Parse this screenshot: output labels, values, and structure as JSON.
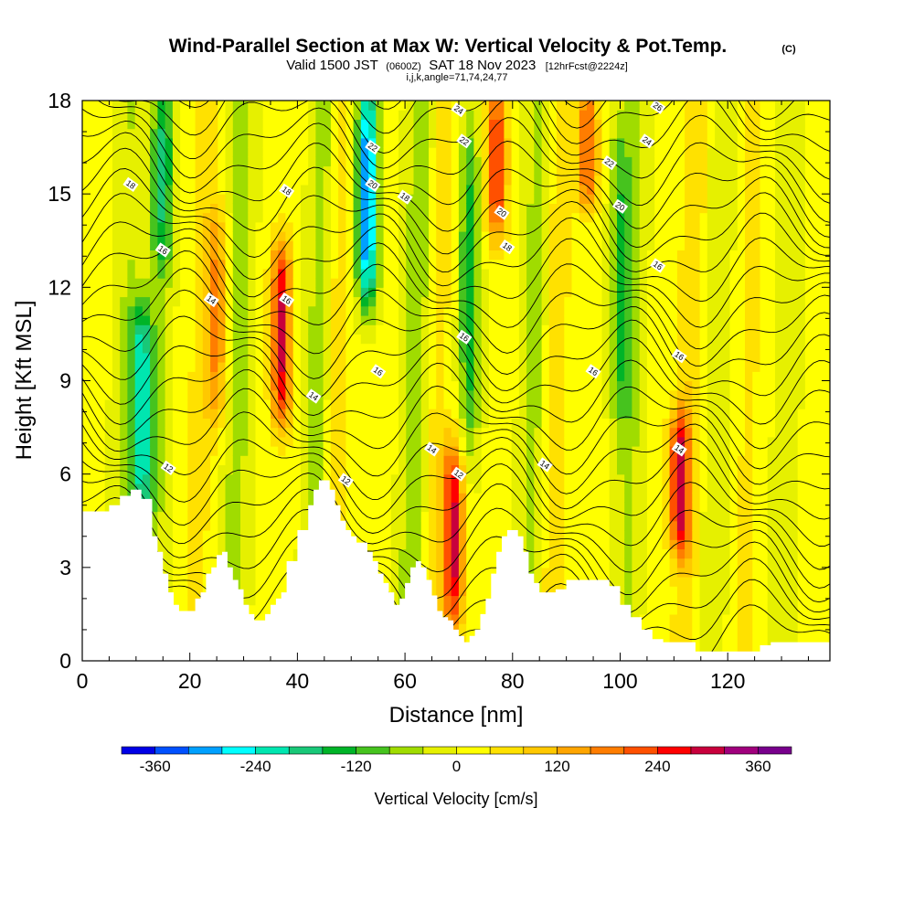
{
  "title": {
    "main": "Wind-Parallel Section at Max W: Vertical Velocity & Pot.Temp.",
    "copyright": "(C)",
    "valid_prefix": "Valid 1500 JST",
    "valid_utc": "(0600Z)",
    "valid_date": "SAT 18 Nov 2023",
    "forecast": "[12hrFcst@2224z]",
    "grid_info": "i,j,k,angle=71,74,24,77"
  },
  "chart_data": {
    "type": "heatmap",
    "xlabel": "Distance [nm]",
    "ylabel": "Height [Kft MSL]",
    "xlim": [
      0,
      139
    ],
    "ylim": [
      0,
      18
    ],
    "x_ticks": [
      0,
      20,
      40,
      60,
      80,
      100,
      120
    ],
    "y_ticks": [
      0,
      3,
      6,
      9,
      12,
      15,
      18
    ],
    "grid": false,
    "colorbar": {
      "label": "Vertical Velocity [cm/s]",
      "tick_values": [
        -360,
        -240,
        -120,
        0,
        120,
        240,
        360
      ],
      "levels": [
        -400,
        -360,
        -320,
        -280,
        -240,
        -200,
        -160,
        -120,
        -80,
        -40,
        0,
        40,
        80,
        120,
        160,
        200,
        240,
        280,
        320,
        360,
        400
      ],
      "colors": [
        "#0000e6",
        "#0050ff",
        "#00a0ff",
        "#00ffff",
        "#00e6b0",
        "#18c878",
        "#00b428",
        "#46c31e",
        "#a0dc00",
        "#e6f000",
        "#ffff00",
        "#ffe100",
        "#ffc800",
        "#ffa500",
        "#ff7d00",
        "#ff5000",
        "#ff0000",
        "#c8003c",
        "#a0007d",
        "#78008c"
      ]
    },
    "updraft_cores": [
      {
        "x": 37,
        "y_range": [
          8,
          13
        ],
        "value": 280
      },
      {
        "x": 69,
        "y_range": [
          1.5,
          6.5
        ],
        "value": 280
      },
      {
        "x": 77,
        "y_range": [
          14,
          18
        ],
        "value": 240
      },
      {
        "x": 94,
        "y_range": [
          15,
          18
        ],
        "value": 200
      },
      {
        "x": 111,
        "y_range": [
          4,
          7.5
        ],
        "value": 260
      },
      {
        "x": 25,
        "y_range": [
          8,
          14
        ],
        "value": 150
      }
    ],
    "downdraft_cores": [
      {
        "x": 11,
        "y_range": [
          5,
          11
        ],
        "value": -240
      },
      {
        "x": 53,
        "y_range": [
          12,
          18
        ],
        "value": -340
      },
      {
        "x": 72,
        "y_range": [
          7,
          17
        ],
        "value": -150
      },
      {
        "x": 15,
        "y_range": [
          13,
          18
        ],
        "value": -120
      },
      {
        "x": 100,
        "y_range": [
          8,
          17
        ],
        "value": -120
      }
    ],
    "contour_labels": [
      {
        "x": 9,
        "y": 15.3,
        "text": "18"
      },
      {
        "x": 15,
        "y": 13.2,
        "text": "16"
      },
      {
        "x": 24,
        "y": 11.6,
        "text": "14"
      },
      {
        "x": 16,
        "y": 6.2,
        "text": "12"
      },
      {
        "x": 38,
        "y": 11.6,
        "text": "16"
      },
      {
        "x": 38,
        "y": 15.1,
        "text": "18"
      },
      {
        "x": 43,
        "y": 8.5,
        "text": "14"
      },
      {
        "x": 49,
        "y": 5.8,
        "text": "12"
      },
      {
        "x": 55,
        "y": 9.3,
        "text": "16"
      },
      {
        "x": 54,
        "y": 16.5,
        "text": "22"
      },
      {
        "x": 54,
        "y": 15.3,
        "text": "20"
      },
      {
        "x": 60,
        "y": 14.9,
        "text": "18"
      },
      {
        "x": 65,
        "y": 6.8,
        "text": "14"
      },
      {
        "x": 70,
        "y": 6.0,
        "text": "12"
      },
      {
        "x": 71,
        "y": 10.4,
        "text": "16"
      },
      {
        "x": 70,
        "y": 17.7,
        "text": "24"
      },
      {
        "x": 71,
        "y": 16.7,
        "text": "22"
      },
      {
        "x": 78,
        "y": 14.4,
        "text": "20"
      },
      {
        "x": 79,
        "y": 13.3,
        "text": "18"
      },
      {
        "x": 86,
        "y": 6.3,
        "text": "14"
      },
      {
        "x": 95,
        "y": 9.3,
        "text": "16"
      },
      {
        "x": 98,
        "y": 16.0,
        "text": "22"
      },
      {
        "x": 100,
        "y": 14.6,
        "text": "20"
      },
      {
        "x": 105,
        "y": 16.7,
        "text": "24"
      },
      {
        "x": 107,
        "y": 17.8,
        "text": "26"
      },
      {
        "x": 107,
        "y": 12.7,
        "text": "16"
      },
      {
        "x": 111,
        "y": 9.8,
        "text": "16"
      },
      {
        "x": 111,
        "y": 6.8,
        "text": "14"
      }
    ],
    "terrain": {
      "x": [
        0,
        3,
        5,
        7,
        9,
        11,
        13,
        14,
        15,
        16,
        17,
        18,
        20,
        21,
        22,
        23,
        24,
        25,
        26,
        27,
        28,
        29,
        30,
        31,
        32,
        33,
        34,
        35,
        36,
        37,
        38,
        40,
        42,
        43,
        44,
        45,
        46,
        47,
        48,
        49,
        50,
        51,
        52,
        53,
        54,
        55,
        56,
        57,
        58,
        59,
        60,
        61,
        62,
        63,
        64,
        65,
        66,
        67,
        68,
        69,
        70,
        71,
        72,
        73,
        74,
        75,
        76,
        77,
        78,
        79,
        80,
        81,
        82,
        83,
        84,
        85,
        86,
        87,
        88,
        90,
        92,
        94,
        96,
        98,
        100,
        102,
        104,
        106,
        108,
        110,
        112,
        114,
        116,
        118,
        120,
        122,
        124,
        126,
        128,
        130,
        132,
        134,
        136,
        139
      ],
      "y": [
        4.8,
        4.8,
        5.0,
        5.3,
        5.5,
        5.2,
        4.0,
        3.5,
        2.8,
        2.2,
        1.8,
        1.6,
        1.6,
        2.0,
        2.2,
        2.8,
        3.0,
        3.4,
        3.5,
        3.0,
        2.6,
        2.3,
        1.8,
        1.5,
        1.3,
        1.3,
        1.5,
        1.8,
        2.0,
        2.2,
        3.2,
        4.2,
        5.0,
        5.5,
        5.8,
        5.8,
        5.5,
        5.0,
        4.5,
        4.2,
        4.0,
        3.8,
        3.8,
        3.5,
        3.2,
        2.8,
        2.5,
        2.2,
        1.8,
        2.0,
        2.5,
        3.0,
        3.2,
        3.0,
        2.6,
        2.1,
        1.6,
        1.4,
        1.3,
        1.0,
        0.8,
        0.6,
        0.8,
        1.0,
        1.5,
        2.0,
        2.8,
        3.5,
        4.0,
        4.2,
        4.2,
        4.0,
        3.5,
        2.8,
        2.5,
        2.2,
        2.2,
        2.2,
        2.3,
        2.6,
        2.6,
        2.6,
        2.6,
        2.4,
        1.8,
        1.4,
        1.0,
        0.7,
        0.6,
        0.6,
        0.6,
        0.3,
        0.3,
        0.3,
        0.3,
        0.3,
        0.3,
        0.5,
        0.6,
        0.6,
        0.6,
        0.6,
        0.6,
        0.6
      ]
    }
  }
}
